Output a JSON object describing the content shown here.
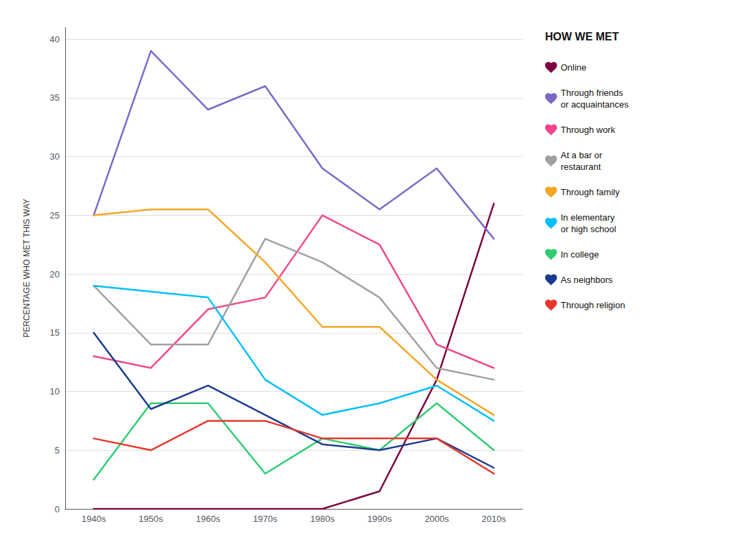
{
  "chart_data": {
    "type": "line",
    "legend_title": "HOW WE MET",
    "ylabel": "PERCENTAGE WHO MET THIS WAY",
    "categories": [
      "1940s",
      "1950s",
      "1960s",
      "1970s",
      "1980s",
      "1990s",
      "2000s",
      "2010s"
    ],
    "series": [
      {
        "name": "Online",
        "color": "#7B0041",
        "values": [
          0,
          0,
          0,
          0,
          0,
          1.5,
          11,
          26
        ]
      },
      {
        "name": "Through friends\nor acquaintances",
        "color": "#7B68C8",
        "values": [
          25,
          39,
          34,
          36,
          29,
          25.5,
          29,
          23
        ]
      },
      {
        "name": "Through work",
        "color": "#F0478A",
        "values": [
          13,
          12,
          17,
          18,
          25,
          22.5,
          14,
          12
        ]
      },
      {
        "name": "At a bar or\nrestaurant",
        "color": "#A0A0A0",
        "values": [
          19,
          14,
          14,
          23,
          21,
          18,
          12,
          11
        ]
      },
      {
        "name": "Through family",
        "color": "#F5A623",
        "values": [
          25,
          25.5,
          25.5,
          21,
          15.5,
          15.5,
          11,
          8
        ]
      },
      {
        "name": "In elementary\nor high school",
        "color": "#00BFFF",
        "values": [
          19,
          18.5,
          18,
          11,
          8,
          9,
          10.5,
          7.5
        ]
      },
      {
        "name": "In college",
        "color": "#2ECC71",
        "values": [
          2.5,
          9,
          9,
          3,
          6,
          5,
          9,
          5
        ]
      },
      {
        "name": "As neighbors",
        "color": "#1A3A8F",
        "values": [
          15,
          8.5,
          10.5,
          8,
          5.5,
          5,
          6,
          3.5
        ]
      },
      {
        "name": "Through religion",
        "color": "#E8352A",
        "values": [
          6,
          5,
          7.5,
          7.5,
          6,
          6,
          6,
          3
        ]
      }
    ],
    "ylim": [
      0,
      41
    ],
    "yticks": [
      0,
      5,
      10,
      15,
      20,
      25,
      30,
      35,
      40
    ],
    "grid": true,
    "legend": "right"
  }
}
